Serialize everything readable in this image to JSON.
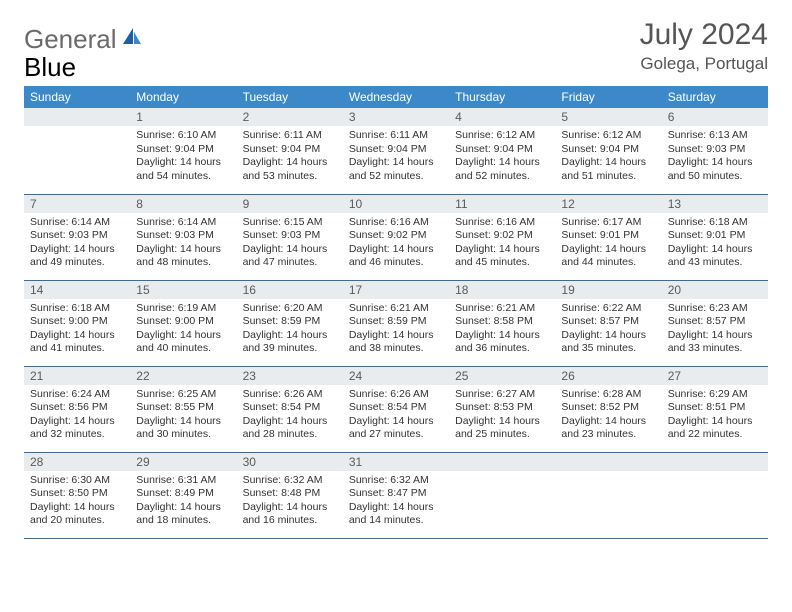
{
  "logo": {
    "word1": "General",
    "word2": "Blue"
  },
  "header": {
    "title": "July 2024",
    "location": "Golega, Portugal"
  },
  "colors": {
    "header_bg": "#3b89c9",
    "header_text": "#ffffff",
    "daynum_bg": "#e9ecef",
    "rule": "#2b6fb0",
    "text": "#333333",
    "title_color": "#555555"
  },
  "day_headers": [
    "Sunday",
    "Monday",
    "Tuesday",
    "Wednesday",
    "Thursday",
    "Friday",
    "Saturday"
  ],
  "weeks": [
    [
      {
        "n": "",
        "lines": []
      },
      {
        "n": "1",
        "lines": [
          "Sunrise: 6:10 AM",
          "Sunset: 9:04 PM",
          "Daylight: 14 hours and 54 minutes."
        ]
      },
      {
        "n": "2",
        "lines": [
          "Sunrise: 6:11 AM",
          "Sunset: 9:04 PM",
          "Daylight: 14 hours and 53 minutes."
        ]
      },
      {
        "n": "3",
        "lines": [
          "Sunrise: 6:11 AM",
          "Sunset: 9:04 PM",
          "Daylight: 14 hours and 52 minutes."
        ]
      },
      {
        "n": "4",
        "lines": [
          "Sunrise: 6:12 AM",
          "Sunset: 9:04 PM",
          "Daylight: 14 hours and 52 minutes."
        ]
      },
      {
        "n": "5",
        "lines": [
          "Sunrise: 6:12 AM",
          "Sunset: 9:04 PM",
          "Daylight: 14 hours and 51 minutes."
        ]
      },
      {
        "n": "6",
        "lines": [
          "Sunrise: 6:13 AM",
          "Sunset: 9:03 PM",
          "Daylight: 14 hours and 50 minutes."
        ]
      }
    ],
    [
      {
        "n": "7",
        "lines": [
          "Sunrise: 6:14 AM",
          "Sunset: 9:03 PM",
          "Daylight: 14 hours and 49 minutes."
        ]
      },
      {
        "n": "8",
        "lines": [
          "Sunrise: 6:14 AM",
          "Sunset: 9:03 PM",
          "Daylight: 14 hours and 48 minutes."
        ]
      },
      {
        "n": "9",
        "lines": [
          "Sunrise: 6:15 AM",
          "Sunset: 9:03 PM",
          "Daylight: 14 hours and 47 minutes."
        ]
      },
      {
        "n": "10",
        "lines": [
          "Sunrise: 6:16 AM",
          "Sunset: 9:02 PM",
          "Daylight: 14 hours and 46 minutes."
        ]
      },
      {
        "n": "11",
        "lines": [
          "Sunrise: 6:16 AM",
          "Sunset: 9:02 PM",
          "Daylight: 14 hours and 45 minutes."
        ]
      },
      {
        "n": "12",
        "lines": [
          "Sunrise: 6:17 AM",
          "Sunset: 9:01 PM",
          "Daylight: 14 hours and 44 minutes."
        ]
      },
      {
        "n": "13",
        "lines": [
          "Sunrise: 6:18 AM",
          "Sunset: 9:01 PM",
          "Daylight: 14 hours and 43 minutes."
        ]
      }
    ],
    [
      {
        "n": "14",
        "lines": [
          "Sunrise: 6:18 AM",
          "Sunset: 9:00 PM",
          "Daylight: 14 hours and 41 minutes."
        ]
      },
      {
        "n": "15",
        "lines": [
          "Sunrise: 6:19 AM",
          "Sunset: 9:00 PM",
          "Daylight: 14 hours and 40 minutes."
        ]
      },
      {
        "n": "16",
        "lines": [
          "Sunrise: 6:20 AM",
          "Sunset: 8:59 PM",
          "Daylight: 14 hours and 39 minutes."
        ]
      },
      {
        "n": "17",
        "lines": [
          "Sunrise: 6:21 AM",
          "Sunset: 8:59 PM",
          "Daylight: 14 hours and 38 minutes."
        ]
      },
      {
        "n": "18",
        "lines": [
          "Sunrise: 6:21 AM",
          "Sunset: 8:58 PM",
          "Daylight: 14 hours and 36 minutes."
        ]
      },
      {
        "n": "19",
        "lines": [
          "Sunrise: 6:22 AM",
          "Sunset: 8:57 PM",
          "Daylight: 14 hours and 35 minutes."
        ]
      },
      {
        "n": "20",
        "lines": [
          "Sunrise: 6:23 AM",
          "Sunset: 8:57 PM",
          "Daylight: 14 hours and 33 minutes."
        ]
      }
    ],
    [
      {
        "n": "21",
        "lines": [
          "Sunrise: 6:24 AM",
          "Sunset: 8:56 PM",
          "Daylight: 14 hours and 32 minutes."
        ]
      },
      {
        "n": "22",
        "lines": [
          "Sunrise: 6:25 AM",
          "Sunset: 8:55 PM",
          "Daylight: 14 hours and 30 minutes."
        ]
      },
      {
        "n": "23",
        "lines": [
          "Sunrise: 6:26 AM",
          "Sunset: 8:54 PM",
          "Daylight: 14 hours and 28 minutes."
        ]
      },
      {
        "n": "24",
        "lines": [
          "Sunrise: 6:26 AM",
          "Sunset: 8:54 PM",
          "Daylight: 14 hours and 27 minutes."
        ]
      },
      {
        "n": "25",
        "lines": [
          "Sunrise: 6:27 AM",
          "Sunset: 8:53 PM",
          "Daylight: 14 hours and 25 minutes."
        ]
      },
      {
        "n": "26",
        "lines": [
          "Sunrise: 6:28 AM",
          "Sunset: 8:52 PM",
          "Daylight: 14 hours and 23 minutes."
        ]
      },
      {
        "n": "27",
        "lines": [
          "Sunrise: 6:29 AM",
          "Sunset: 8:51 PM",
          "Daylight: 14 hours and 22 minutes."
        ]
      }
    ],
    [
      {
        "n": "28",
        "lines": [
          "Sunrise: 6:30 AM",
          "Sunset: 8:50 PM",
          "Daylight: 14 hours and 20 minutes."
        ]
      },
      {
        "n": "29",
        "lines": [
          "Sunrise: 6:31 AM",
          "Sunset: 8:49 PM",
          "Daylight: 14 hours and 18 minutes."
        ]
      },
      {
        "n": "30",
        "lines": [
          "Sunrise: 6:32 AM",
          "Sunset: 8:48 PM",
          "Daylight: 14 hours and 16 minutes."
        ]
      },
      {
        "n": "31",
        "lines": [
          "Sunrise: 6:32 AM",
          "Sunset: 8:47 PM",
          "Daylight: 14 hours and 14 minutes."
        ]
      },
      {
        "n": "",
        "lines": []
      },
      {
        "n": "",
        "lines": []
      },
      {
        "n": "",
        "lines": []
      }
    ]
  ]
}
